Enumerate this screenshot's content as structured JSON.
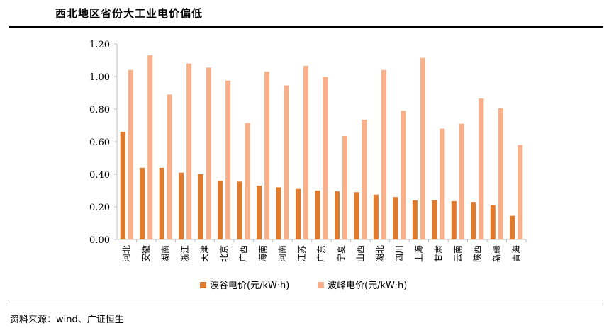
{
  "header": {
    "title": "西北地区省份大工业电价偏低"
  },
  "footer": {
    "source": "资料来源：wind、广证恒生"
  },
  "colors": {
    "valley": "#E07B2E",
    "peak": "#F7B08A",
    "axis": "#BFBFBF"
  },
  "chart_data": {
    "type": "bar",
    "title": "",
    "xlabel": "",
    "ylabel": "",
    "ylim": [
      0,
      1.2
    ],
    "yticks": [
      "0.00",
      "0.20",
      "0.40",
      "0.60",
      "0.80",
      "1.00",
      "1.20"
    ],
    "grid": false,
    "legend_position": "bottom",
    "categories": [
      "河北",
      "安徽",
      "湖南",
      "浙江",
      "天津",
      "北京",
      "广西",
      "海南",
      "河南",
      "江苏",
      "广东",
      "宁夏",
      "山西",
      "湖北",
      "四川",
      "上海",
      "甘肃",
      "云南",
      "陕西",
      "新疆",
      "青海"
    ],
    "series": [
      {
        "name": "波谷电价(元/kW·h)",
        "values": [
          0.66,
          0.44,
          0.44,
          0.41,
          0.4,
          0.36,
          0.355,
          0.33,
          0.32,
          0.31,
          0.3,
          0.295,
          0.29,
          0.275,
          0.26,
          0.24,
          0.24,
          0.235,
          0.23,
          0.21,
          0.145
        ]
      },
      {
        "name": "波峰电价(元/kW·h)",
        "values": [
          1.04,
          1.13,
          0.89,
          1.08,
          1.055,
          0.975,
          0.715,
          1.03,
          0.945,
          1.065,
          1.0,
          0.635,
          0.735,
          1.04,
          0.79,
          1.115,
          0.68,
          0.71,
          0.865,
          0.805,
          0.58
        ]
      }
    ]
  }
}
